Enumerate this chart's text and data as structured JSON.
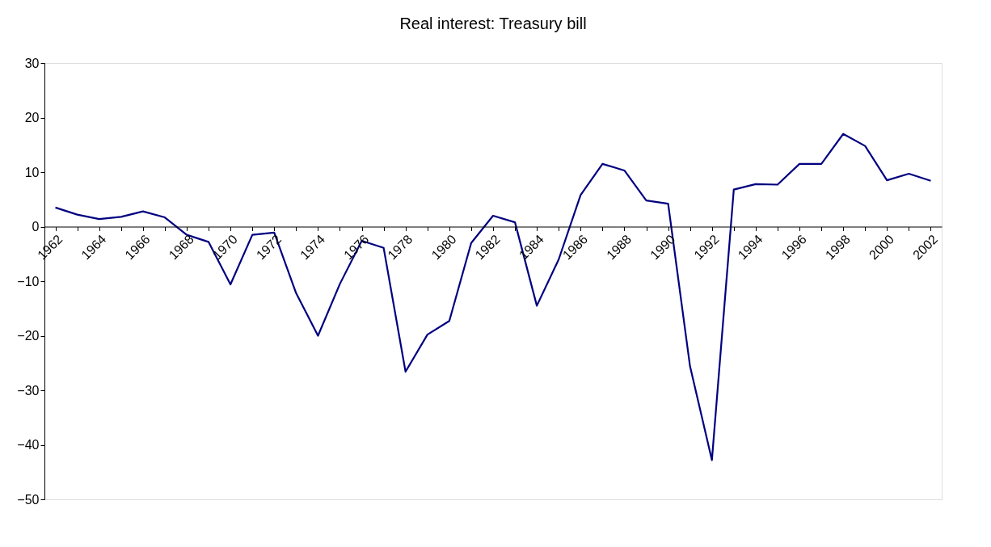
{
  "chart_data": {
    "type": "line",
    "title": "Real interest: Treasury bill",
    "categories": [
      "1962",
      null,
      "1964",
      null,
      "1966",
      null,
      "1968",
      null,
      "1970",
      null,
      "1972",
      null,
      "1974",
      null,
      "1976",
      null,
      "1978",
      null,
      "1980",
      null,
      "1982",
      null,
      "1984",
      null,
      "1986",
      null,
      "1988",
      null,
      "1990",
      null,
      "1992",
      null,
      "1994",
      null,
      "1996",
      null,
      "1998",
      null,
      "2000",
      null,
      "2002"
    ],
    "series": [
      {
        "color": "#000080",
        "values": [
          3.5,
          2.2,
          1.4,
          1.8,
          2.8,
          1.7,
          -1.5,
          -2.8,
          -10.6,
          -1.5,
          -1.1,
          -12.2,
          -20,
          -10.5,
          -2.6,
          -3.9,
          -26.6,
          -19.8,
          -17.3,
          -3,
          2,
          0.8,
          -14.5,
          -6,
          5.8,
          11.5,
          10.3,
          4.8,
          4.2,
          -25.6,
          -42.8,
          6.8,
          7.8,
          7.7,
          11.5,
          11.5,
          17,
          14.8,
          8.5,
          9.7,
          8.4
        ]
      }
    ],
    "ylim": [
      -50,
      30
    ],
    "yticks": [
      -50,
      -40,
      -30,
      -20,
      -10,
      0,
      10,
      20,
      30
    ],
    "grid": false,
    "marker": "none",
    "line_style": "solid"
  }
}
